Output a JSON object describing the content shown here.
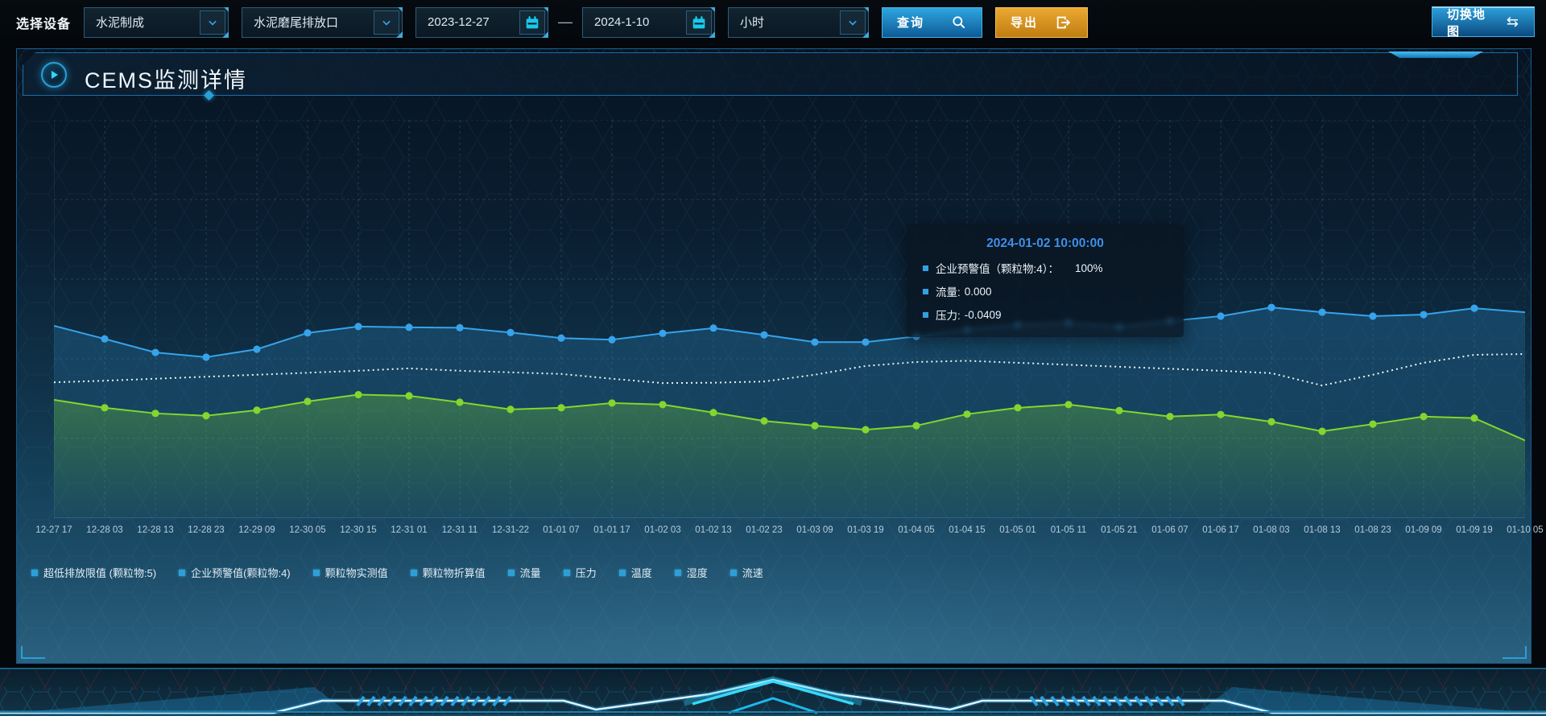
{
  "toolbar": {
    "device_label": "选择设备",
    "process_select": {
      "value": "水泥制成"
    },
    "outlet_select": {
      "value": "水泥磨尾排放口"
    },
    "date_start": {
      "value": "2023-12-27"
    },
    "date_separator": "—",
    "date_end": {
      "value": "2024-1-10"
    },
    "interval_select": {
      "value": "小时"
    },
    "query_button": "查询",
    "export_button": "导出",
    "map_button": "切换地图",
    "icons": {
      "map_switch_glyph": "⇆"
    }
  },
  "panel": {
    "title": "CEMS监测详情"
  },
  "tooltip": {
    "timestamp": "2024-01-02 10:00:00",
    "rows": [
      {
        "label": "企业预警值（颗粒物:4）：",
        "value": "100%"
      },
      {
        "label": "流量:",
        "value": "0.000"
      },
      {
        "label": "压力:",
        "value": "-0.0409"
      }
    ]
  },
  "chart_data": {
    "type": "line",
    "title": "CEMS监测详情",
    "x_labels": [
      "12-27 17",
      "12-28 03",
      "12-28 13",
      "12-28 23",
      "12-29 09",
      "12-30 05",
      "12-30 15",
      "12-31 01",
      "12-31 11",
      "12-31-22",
      "01-01 07",
      "01-01 17",
      "01-02 03",
      "01-02 13",
      "01-02 23",
      "01-03 09",
      "01-03 19",
      "01-04 05",
      "01-04 15",
      "01-05 01",
      "01-05 11",
      "01-05 21",
      "01-06 07",
      "01-06 17",
      "01-08 03",
      "01-08 13",
      "01-08 23",
      "01-09 09",
      "01-09 19",
      "01-10 05"
    ],
    "y_axis_note": "no y-axis tick labels visible; series values estimated as percent of plot height from bottom",
    "grid": "dashed",
    "legend_position": "bottom-left",
    "legend_entries": [
      "超低排放限值 (颗粒物:5)",
      "企业预警值(颗粒物:4)",
      "颗粒物实测值",
      "颗粒物折算值",
      "流量",
      "压力",
      "温度",
      "湿度",
      "流速"
    ],
    "series": [
      {
        "name": "blue-line-with-markers",
        "color": "#36a3ea",
        "markers": true,
        "area": true,
        "values": [
          48.3,
          45.0,
          41.6,
          40.4,
          42.4,
          46.5,
          48.1,
          47.9,
          47.8,
          46.6,
          45.2,
          44.8,
          46.4,
          47.7,
          46.0,
          44.2,
          44.2,
          45.6,
          47.3,
          48.5,
          49.0,
          48.0,
          49.5,
          50.7,
          52.9,
          51.7,
          50.7,
          51.1,
          52.7,
          51.7
        ]
      },
      {
        "name": "white-dotted-line",
        "color": "#e9f3f5",
        "markers": false,
        "area": false,
        "style": "dotted",
        "values": [
          34.1,
          34.5,
          35.0,
          35.5,
          36.0,
          36.5,
          37.0,
          37.6,
          37.0,
          36.6,
          36.2,
          35.0,
          33.9,
          34.0,
          34.3,
          36.0,
          38.2,
          39.2,
          39.5,
          39.0,
          38.5,
          38.0,
          37.5,
          37.0,
          36.4,
          33.3,
          36.0,
          39.0,
          41.0,
          41.2
        ]
      },
      {
        "name": "green-line-with-markers",
        "color": "#82d62e",
        "markers": true,
        "area": true,
        "values": [
          29.7,
          27.7,
          26.3,
          25.7,
          27.1,
          29.3,
          31.0,
          30.7,
          29.1,
          27.3,
          27.7,
          28.9,
          28.5,
          26.5,
          24.4,
          23.2,
          22.2,
          23.2,
          26.1,
          27.7,
          28.5,
          27.0,
          25.5,
          26.0,
          24.2,
          21.8,
          23.6,
          25.5,
          25.1,
          19.5
        ]
      }
    ]
  },
  "colors": {
    "accent_blue": "#36a3ea",
    "accent_green": "#82d62e",
    "tooltip_title_blue": "#3f90e8",
    "export_orange": "#cf8d15",
    "panel_border": "#155a8c",
    "control_border": "#2b5c7c",
    "calendar_icon_cyan": "#1ac8e8"
  }
}
